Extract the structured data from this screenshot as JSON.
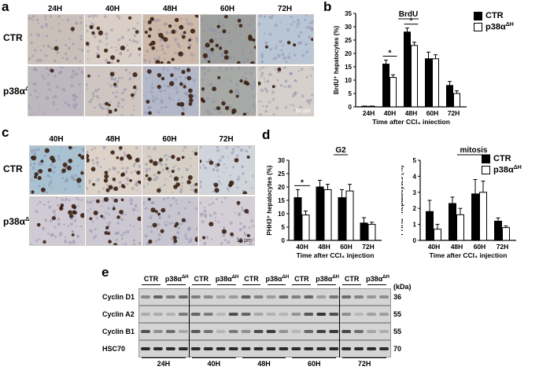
{
  "panel_a": {
    "letter": "a",
    "columns": [
      "24H",
      "40H",
      "48H",
      "60H",
      "72H"
    ],
    "rows": [
      {
        "label": "CTR",
        "tint": [
          "#c9c1b9",
          "#d9cfc6",
          "#cdb8aa",
          "#9ea09e",
          "#b8c6d6"
        ],
        "dots": [
          2,
          14,
          26,
          20,
          4
        ]
      },
      {
        "label": "p38α",
        "sup": "ΔH",
        "tint": [
          "#bdb8bf",
          "#cfc6c1",
          "#b2b8c8",
          "#a7a9a6",
          "#d6d0cc"
        ],
        "dots": [
          1,
          10,
          20,
          16,
          3
        ]
      }
    ],
    "scale": "10 μm"
  },
  "panel_c": {
    "letter": "c",
    "columns": [
      "40H",
      "48H",
      "60H",
      "72H"
    ],
    "rows": [
      {
        "label": "CTR",
        "tint": [
          "#a9c2d2",
          "#ddd2c8",
          "#d6cfc6",
          "#d0d5dc"
        ],
        "dots": [
          22,
          26,
          20,
          10
        ]
      },
      {
        "label": "p38α",
        "sup": "ΔH",
        "tint": [
          "#cfcad3",
          "#ccc8d2",
          "#c7c6d0",
          "#d4cfd6"
        ],
        "dots": [
          14,
          16,
          14,
          8
        ]
      }
    ],
    "scale": "10 μm"
  },
  "legend": {
    "ctr": "CTR",
    "ko": "p38α",
    "ko_sup": "ΔH",
    "ctr_color": "#000000",
    "ko_color": "#ffffff"
  },
  "panel_b_letter": "b",
  "panel_d_letter": "d",
  "panel_e_letter": "e",
  "chart_data": [
    {
      "type": "bar",
      "id": "b",
      "title": "BrdU",
      "ylabel": "BrdU⁺ hepatocytes (%)",
      "xlabel": "Time after CCl₄ injection",
      "categories": [
        "24H",
        "40H",
        "48H",
        "60H",
        "72H"
      ],
      "ylim": [
        0,
        35
      ],
      "yticks": [
        0,
        5,
        10,
        15,
        20,
        25,
        30,
        35
      ],
      "series": [
        {
          "name": "CTR",
          "values": [
            0.2,
            16,
            28,
            18,
            8
          ],
          "errors": [
            0.1,
            1.5,
            1.5,
            2.5,
            1.5
          ]
        },
        {
          "name": "p38αΔH",
          "values": [
            0.2,
            11,
            23,
            18,
            5
          ],
          "errors": [
            0.1,
            1.0,
            1.2,
            1.5,
            1.0
          ]
        }
      ],
      "significance": [
        {
          "category": "40H",
          "label": "*"
        },
        {
          "category": "48H",
          "label": "*"
        }
      ]
    },
    {
      "type": "bar",
      "id": "d1",
      "title": "G2",
      "ylabel": "PHH3⁺ hepatocytes (%)",
      "xlabel": "Time after CCl₄ injection",
      "categories": [
        "40H",
        "48H",
        "60H",
        "72H"
      ],
      "ylim": [
        0,
        30
      ],
      "yticks": [
        0,
        5,
        10,
        15,
        20,
        25,
        30
      ],
      "series": [
        {
          "name": "CTR",
          "values": [
            16,
            20,
            16,
            6.5
          ],
          "errors": [
            3,
            2.5,
            3,
            2
          ]
        },
        {
          "name": "p38αΔH",
          "values": [
            9.5,
            19,
            18.5,
            6
          ],
          "errors": [
            1.5,
            2,
            2.5,
            0.8
          ]
        }
      ],
      "significance": [
        {
          "category": "40H",
          "label": "*"
        }
      ]
    },
    {
      "type": "bar",
      "id": "d2",
      "title": "mitosis",
      "ylabel": "PHH3⁺ hepatocytes (%)",
      "xlabel": "Time after CCl₄ injection",
      "categories": [
        "40H",
        "48H",
        "60H",
        "72H"
      ],
      "ylim": [
        0,
        5
      ],
      "yticks": [
        0,
        1,
        2,
        3,
        4,
        5
      ],
      "series": [
        {
          "name": "CTR",
          "values": [
            1.8,
            2.3,
            2.9,
            1.2
          ],
          "errors": [
            0.7,
            0.4,
            0.9,
            0.2
          ]
        },
        {
          "name": "p38αΔH",
          "values": [
            0.7,
            1.6,
            3.0,
            0.8
          ],
          "errors": [
            0.3,
            0.4,
            0.7,
            0.1
          ]
        }
      ],
      "significance": []
    }
  ],
  "panel_e": {
    "lane_headers": [
      "CTR",
      "p38α",
      "CTR",
      "p38α",
      "CTR",
      "p38α",
      "CTR",
      "p38α",
      "CTR",
      "p38α"
    ],
    "lane_sup": "ΔH",
    "unit": "(kDa)",
    "blots": [
      {
        "name": "Cyclin D1",
        "kda": "36"
      },
      {
        "name": "Cyclin A2",
        "kda": "55"
      },
      {
        "name": "Cyclin B1",
        "kda": "55"
      },
      {
        "name": "HSC70",
        "kda": "70"
      }
    ],
    "timepoints": [
      "24H",
      "40H",
      "48H",
      "60H",
      "72H"
    ]
  }
}
